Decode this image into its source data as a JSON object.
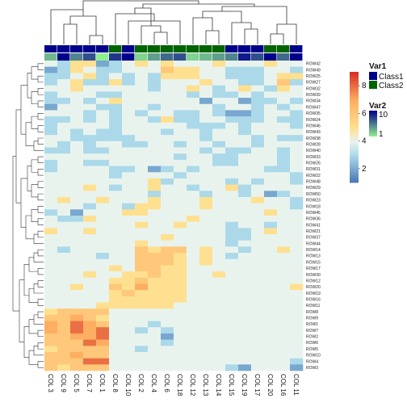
{
  "chart_data": {
    "type": "heatmap",
    "title": "",
    "columns": [
      "COL 3",
      "COL 9",
      "COL 5",
      "COL 7",
      "COL 1",
      "COL 8",
      "COL 10",
      "COL 2",
      "COL 4",
      "COL 6",
      "COL 18",
      "COL 12",
      "COL 13",
      "COL 14",
      "COL 15",
      "COL 19",
      "COL 17",
      "COL 20",
      "COL 16",
      "COL 11"
    ],
    "rows": [
      "ROW42",
      "ROW49",
      "ROW25",
      "ROW27",
      "ROW32",
      "ROW39",
      "ROW34",
      "ROW47",
      "ROW35",
      "ROW24",
      "ROW46",
      "ROW43",
      "ROW38",
      "ROW28",
      "ROW40",
      "ROW33",
      "ROW26",
      "ROW31",
      "ROW22",
      "ROW48",
      "ROW29",
      "ROW50",
      "ROW23",
      "ROW18",
      "ROW45",
      "ROW36",
      "ROW41",
      "ROW21",
      "ROW37",
      "ROW44",
      "ROW14",
      "ROW13",
      "ROW15",
      "ROW17",
      "ROW30",
      "ROW12",
      "ROW20",
      "ROW19",
      "ROW16",
      "ROW11",
      "ROW8",
      "ROW9",
      "ROW1",
      "ROW7",
      "ROW2",
      "ROW6",
      "ROW5",
      "ROW10",
      "ROW4",
      "ROW3"
    ],
    "var1": [
      "Class1",
      "Class1",
      "Class1",
      "Class1",
      "Class1",
      "Class2",
      "Class1",
      "Class2",
      "Class2",
      "Class2",
      "Class2",
      "Class2",
      "Class2",
      "Class2",
      "Class1",
      "Class1",
      "Class1",
      "Class2",
      "Class2",
      "Class1"
    ],
    "var2": [
      3,
      10,
      5,
      7,
      1,
      8,
      10,
      2,
      4,
      6,
      7,
      2,
      3,
      4,
      5,
      9,
      7,
      10,
      6,
      10
    ],
    "values": [
      [
        4,
        3,
        5,
        5,
        2,
        3,
        4,
        5,
        4,
        5,
        4,
        4,
        4,
        5,
        4,
        4,
        4,
        5,
        4,
        4
      ],
      [
        2,
        3,
        5,
        4,
        3,
        3,
        4,
        4,
        4,
        6,
        5,
        5,
        4,
        4,
        3,
        3,
        3,
        4,
        4,
        3
      ],
      [
        3,
        3,
        4,
        5,
        3,
        4,
        3,
        4,
        3,
        5,
        5,
        5,
        4,
        4,
        3,
        3,
        3,
        4,
        5,
        5
      ],
      [
        3,
        4,
        5,
        3,
        3,
        5,
        3,
        4,
        3,
        4,
        4,
        4,
        5,
        4,
        4,
        3,
        3,
        4,
        6,
        3
      ],
      [
        4,
        4,
        5,
        4,
        4,
        4,
        4,
        4,
        3,
        4,
        4,
        5,
        4,
        3,
        4,
        5,
        4,
        3,
        5,
        4
      ],
      [
        3,
        4,
        4,
        4,
        3,
        3,
        4,
        4,
        4,
        4,
        4,
        3,
        4,
        3,
        3,
        4,
        3,
        4,
        4,
        4
      ],
      [
        3,
        3,
        4,
        3,
        4,
        5,
        4,
        4,
        4,
        4,
        4,
        4,
        2,
        4,
        4,
        2,
        3,
        3,
        4,
        3
      ],
      [
        2,
        4,
        4,
        4,
        3,
        3,
        4,
        4,
        3,
        4,
        4,
        4,
        4,
        3,
        4,
        4,
        3,
        4,
        3,
        4
      ],
      [
        4,
        4,
        4,
        3,
        4,
        3,
        4,
        3,
        4,
        4,
        3,
        3,
        4,
        3,
        2,
        2,
        3,
        4,
        4,
        3
      ],
      [
        3,
        3,
        4,
        3,
        4,
        3,
        4,
        4,
        3,
        5,
        3,
        3,
        4,
        4,
        3,
        3,
        3,
        4,
        3,
        3
      ],
      [
        3,
        4,
        4,
        4,
        4,
        3,
        4,
        4,
        4,
        4,
        4,
        3,
        3,
        3,
        4,
        3,
        4,
        4,
        4,
        3
      ],
      [
        3,
        4,
        3,
        4,
        3,
        3,
        4,
        4,
        4,
        3,
        4,
        4,
        3,
        4,
        4,
        3,
        4,
        4,
        4,
        4
      ],
      [
        4,
        4,
        3,
        3,
        3,
        3,
        3,
        4,
        4,
        4,
        4,
        4,
        3,
        4,
        4,
        4,
        3,
        4,
        3,
        3
      ],
      [
        4,
        3,
        4,
        3,
        4,
        4,
        3,
        3,
        4,
        4,
        3,
        4,
        4,
        3,
        4,
        4,
        3,
        4,
        4,
        4
      ],
      [
        3,
        3,
        4,
        3,
        3,
        4,
        4,
        4,
        4,
        4,
        4,
        4,
        3,
        4,
        3,
        3,
        4,
        4,
        3,
        4
      ],
      [
        4,
        4,
        4,
        4,
        4,
        4,
        4,
        4,
        4,
        4,
        3,
        4,
        4,
        3,
        3,
        4,
        4,
        4,
        3,
        4
      ],
      [
        3,
        4,
        4,
        3,
        3,
        4,
        4,
        4,
        4,
        4,
        4,
        4,
        4,
        3,
        3,
        4,
        4,
        4,
        3,
        4
      ],
      [
        3,
        4,
        4,
        4,
        4,
        3,
        3,
        4,
        2,
        3,
        4,
        3,
        4,
        4,
        4,
        4,
        4,
        3,
        3,
        4
      ],
      [
        4,
        4,
        4,
        4,
        4,
        3,
        4,
        4,
        4,
        4,
        3,
        4,
        4,
        4,
        4,
        4,
        4,
        4,
        4,
        3
      ],
      [
        4,
        4,
        4,
        4,
        4,
        4,
        4,
        4,
        5,
        3,
        4,
        4,
        4,
        4,
        3,
        4,
        3,
        4,
        4,
        3
      ],
      [
        4,
        4,
        4,
        5,
        4,
        3,
        4,
        4,
        5,
        4,
        4,
        3,
        4,
        4,
        5,
        3,
        4,
        4,
        4,
        4
      ],
      [
        4,
        4,
        4,
        4,
        4,
        4,
        4,
        4,
        3,
        4,
        4,
        4,
        3,
        4,
        4,
        3,
        4,
        2,
        3,
        4
      ],
      [
        4,
        5,
        4,
        4,
        5,
        4,
        4,
        4,
        5,
        4,
        4,
        4,
        5,
        4,
        4,
        4,
        5,
        4,
        4,
        3
      ],
      [
        4,
        4,
        4,
        3,
        4,
        4,
        3,
        5,
        5,
        4,
        4,
        4,
        5,
        4,
        4,
        4,
        4,
        4,
        4,
        3
      ],
      [
        3,
        4,
        2,
        4,
        4,
        4,
        5,
        5,
        4,
        4,
        4,
        4,
        4,
        4,
        4,
        4,
        4,
        5,
        4,
        4
      ],
      [
        4,
        3,
        3,
        5,
        4,
        4,
        4,
        4,
        4,
        4,
        4,
        5,
        4,
        4,
        4,
        4,
        4,
        4,
        4,
        4
      ],
      [
        4,
        4,
        4,
        4,
        4,
        4,
        4,
        5,
        4,
        4,
        5,
        4,
        4,
        4,
        3,
        4,
        4,
        3,
        4,
        4
      ],
      [
        5,
        4,
        4,
        5,
        4,
        4,
        4,
        4,
        4,
        4,
        4,
        4,
        4,
        4,
        3,
        3,
        4,
        5,
        4,
        4
      ],
      [
        4,
        4,
        4,
        4,
        4,
        4,
        4,
        4,
        4,
        5,
        4,
        4,
        4,
        4,
        3,
        3,
        4,
        4,
        4,
        4
      ],
      [
        4,
        4,
        4,
        4,
        4,
        4,
        4,
        5,
        4,
        4,
        4,
        4,
        4,
        4,
        3,
        4,
        4,
        4,
        4,
        4
      ],
      [
        4,
        3,
        4,
        4,
        4,
        4,
        4,
        6,
        5,
        6,
        6,
        4,
        5,
        4,
        4,
        3,
        4,
        4,
        5,
        4
      ],
      [
        4,
        4,
        4,
        4,
        3,
        4,
        4,
        6,
        6,
        6,
        5,
        4,
        5,
        4,
        3,
        4,
        4,
        4,
        4,
        4
      ],
      [
        4,
        4,
        4,
        4,
        4,
        4,
        4,
        6,
        6,
        6,
        5,
        4,
        5,
        4,
        4,
        4,
        4,
        4,
        4,
        4
      ],
      [
        4,
        4,
        4,
        4,
        4,
        5,
        4,
        6,
        6,
        5,
        5,
        4,
        4,
        4,
        4,
        4,
        4,
        4,
        4,
        4
      ],
      [
        4,
        4,
        4,
        5,
        4,
        4,
        5,
        5,
        6,
        5,
        5,
        4,
        4,
        5,
        4,
        4,
        4,
        4,
        4,
        4
      ],
      [
        4,
        4,
        4,
        4,
        4,
        5,
        5,
        6,
        5,
        5,
        5,
        4,
        4,
        4,
        4,
        4,
        4,
        4,
        4,
        4
      ],
      [
        4,
        4,
        5,
        4,
        4,
        6,
        5,
        7,
        5,
        5,
        5,
        4,
        4,
        4,
        4,
        4,
        4,
        4,
        4,
        5
      ],
      [
        4,
        4,
        4,
        4,
        4,
        5,
        6,
        5,
        5,
        5,
        5,
        4,
        4,
        4,
        4,
        4,
        4,
        4,
        4,
        4
      ],
      [
        4,
        4,
        4,
        4,
        4,
        5,
        5,
        5,
        5,
        5,
        5,
        4,
        4,
        4,
        4,
        4,
        4,
        4,
        4,
        4
      ],
      [
        4,
        4,
        4,
        4,
        5,
        5,
        5,
        5,
        5,
        5,
        4,
        4,
        4,
        4,
        4,
        4,
        4,
        4,
        4,
        4
      ],
      [
        5,
        6,
        6,
        6,
        6,
        4,
        4,
        4,
        4,
        4,
        4,
        4,
        4,
        4,
        4,
        4,
        4,
        4,
        4,
        4
      ],
      [
        6,
        6,
        7,
        6,
        5,
        4,
        4,
        4,
        4,
        4,
        4,
        4,
        4,
        4,
        4,
        4,
        4,
        4,
        4,
        4
      ],
      [
        7,
        6,
        8,
        7,
        6,
        4,
        4,
        4,
        3,
        4,
        4,
        4,
        4,
        4,
        4,
        4,
        4,
        4,
        4,
        4
      ],
      [
        7,
        6,
        8,
        7,
        8,
        4,
        4,
        3,
        4,
        3,
        4,
        4,
        4,
        4,
        4,
        4,
        4,
        4,
        4,
        4
      ],
      [
        6,
        6,
        7,
        7,
        8,
        4,
        4,
        4,
        4,
        2,
        4,
        4,
        4,
        4,
        4,
        4,
        4,
        4,
        4,
        4
      ],
      [
        6,
        6,
        6,
        8,
        7,
        4,
        4,
        4,
        4,
        3,
        4,
        4,
        4,
        4,
        4,
        4,
        4,
        4,
        4,
        4
      ],
      [
        5,
        6,
        6,
        6,
        6,
        4,
        4,
        3,
        4,
        4,
        4,
        4,
        4,
        4,
        4,
        4,
        4,
        4,
        4,
        4
      ],
      [
        6,
        6,
        7,
        6,
        6,
        4,
        4,
        4,
        4,
        4,
        4,
        4,
        4,
        4,
        4,
        4,
        4,
        4,
        4,
        4
      ],
      [
        6,
        6,
        6,
        8,
        8,
        4,
        4,
        4,
        4,
        4,
        4,
        4,
        4,
        4,
        4,
        4,
        4,
        4,
        4,
        3
      ],
      [
        6,
        5,
        6,
        6,
        6,
        4,
        4,
        4,
        4,
        4,
        4,
        4,
        4,
        4,
        3,
        2,
        4,
        4,
        4,
        2
      ]
    ],
    "color_scale": {
      "min": 1,
      "max": 9,
      "ticks": [
        2,
        4,
        6,
        8
      ],
      "stops": [
        {
          "value": 1,
          "color": "#4575b4"
        },
        {
          "value": 3,
          "color": "#abd9e9"
        },
        {
          "value": 4,
          "color": "#e9f3ee"
        },
        {
          "value": 5,
          "color": "#fee090"
        },
        {
          "value": 7,
          "color": "#fdae61"
        },
        {
          "value": 9,
          "color": "#d73027"
        }
      ]
    },
    "legend": {
      "var1": {
        "title": "Var1",
        "entries": [
          {
            "label": "Class1",
            "color": "#00008b"
          },
          {
            "label": "Class2",
            "color": "#006400"
          }
        ]
      },
      "var2": {
        "title": "Var2",
        "min": 1,
        "max": 10,
        "ticks": [
          1,
          10
        ],
        "low_color": "#90ee90",
        "high_color": "#00008b"
      }
    },
    "colorbar_ticks": [
      2,
      4,
      6,
      8
    ],
    "legend_placement": "right"
  }
}
